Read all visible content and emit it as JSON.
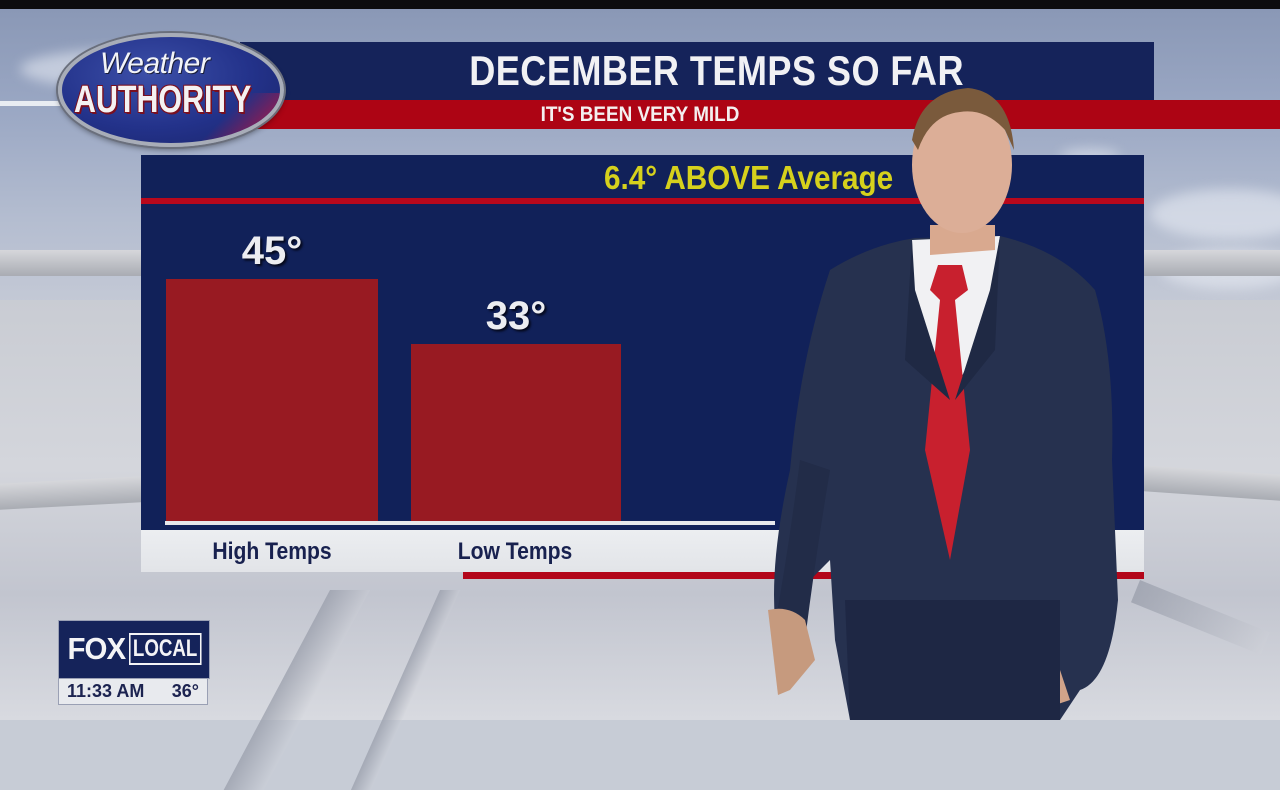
{
  "broadcast": {
    "logo": {
      "line1": "Weather",
      "line2": "AUTHORITY"
    },
    "title": "DECEMBER TEMPS SO FAR",
    "subtitle": "IT'S BEEN VERY MILD",
    "anomaly_visible_text": "6.4° ABOVE Averag",
    "anomaly_occluded_suffix": "e"
  },
  "station_bug": {
    "brand_left": "FOX",
    "brand_right": "LOCAL",
    "time": "11:33 AM",
    "temperature": "36°"
  },
  "colors": {
    "navy": "#112159",
    "title_navy": "#15235a",
    "red_stripe": "#ad0414",
    "bar_red": "#981a22",
    "anomaly_yellow": "#d6d11c",
    "label_navy": "#18214f"
  },
  "chart_data": {
    "type": "bar",
    "title": "DECEMBER TEMPS SO FAR",
    "subtitle": "IT'S BEEN VERY MILD",
    "annotation": "6.4° ABOVE Average",
    "categories": [
      "High Temps",
      "Low Temps"
    ],
    "values": [
      45,
      33
    ],
    "value_labels": [
      "45°",
      "33°"
    ],
    "unit": "°F",
    "xlabel": "",
    "ylabel": "",
    "grid": false,
    "legend": null
  }
}
